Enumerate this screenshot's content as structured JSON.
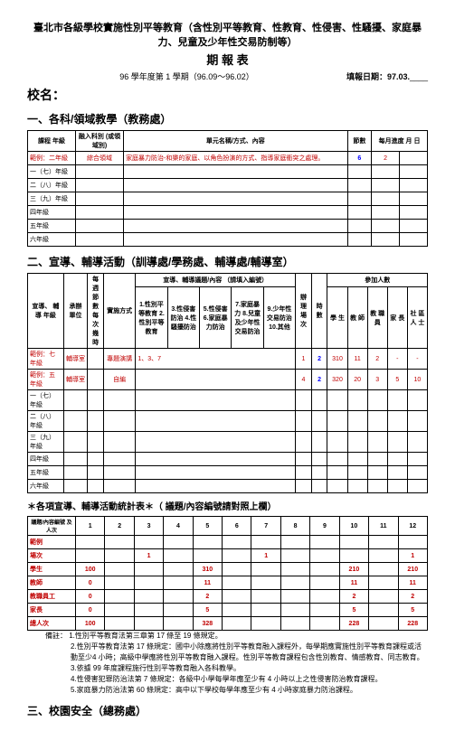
{
  "header": {
    "title": "臺北市各級學校實施性別平等教育（含性別平等教育、性教育、性侵害、性騷擾、家庭暴力、兒童及少年性交易防制等）",
    "report": "期 報 表",
    "semester": "96 學年度第 1 學期（96.09～96.02）",
    "filldate_label": "填報日期：97.03.",
    "school_label": "校名："
  },
  "section1": {
    "heading": "一、各科/領域教學（教務處）",
    "cols": {
      "c1": "課程\n年級",
      "c2": "融入科別\n(或領域別)",
      "c3": "單元名稱/方式、內容",
      "c4": "節數",
      "c5": "每月進度\n月  日"
    },
    "rows": [
      {
        "c1": "範例：二年級",
        "c2": "綜合領域",
        "c3": "家庭暴力防治-和樂的家庭、以角色扮演的方式、指導家庭衝突之處理。",
        "c4": "6",
        "c5": "2",
        "red": true
      },
      {
        "c1": "一（七）年級"
      },
      {
        "c1": "二（八）年級"
      },
      {
        "c1": "三（九）年級"
      },
      {
        "c1": "四年級"
      },
      {
        "c1": "五年級"
      },
      {
        "c1": "六年級"
      }
    ]
  },
  "section2": {
    "heading": "二、宣導、輔導活動（訓導處/學務處、輔導處/輔導室）",
    "h": {
      "c1": "宣導、\n輔導\n年級",
      "c2": "承辦\n單位",
      "sp": "每週\n節數\n每次\n幾時",
      "c3": "實施方式",
      "grp": "宣導、輔導議題/內容\n（請填入編號）",
      "g1": "1.性別平等教育\n2.性別平等教育",
      "g2": "3.性侵害防治\n4.性騷擾防治",
      "g3": "5.性侵害\n6.家庭暴力防治",
      "g4": "7.家庭暴力\n8.兒童及少年性交易防治",
      "g5": "9.少年性交易防治\n10.其他",
      "c4": "辦\n理\n場\n次",
      "c5": "時\n數",
      "p": "參加人數",
      "p1": "學\n生",
      "p2": "教\n師",
      "p3": "教\n職\n員",
      "p4": "家\n長",
      "p5": "社\n區\n人\n士"
    },
    "rows": [
      {
        "c1": "範例：七年級",
        "c2": "輔導室",
        "c3": "專題演講",
        "g": "1、3、7",
        "n1": "1",
        "n2": "2",
        "p1": "310",
        "p2": "11",
        "p3": "2",
        "p4": "-",
        "p5": "-",
        "red": true
      },
      {
        "c1": "範例：五年級",
        "c2": "輔導室",
        "c3": "自編",
        "g": "",
        "n1": "4",
        "n2": "2",
        "p1": "320",
        "p2": "20",
        "p3": "3",
        "p4": "5",
        "p5": "10",
        "red": true
      },
      {
        "c1": "一（七）年級"
      },
      {
        "c1": "二（八）年級"
      },
      {
        "c1": "三（九）年級"
      },
      {
        "c1": "四年級"
      },
      {
        "c1": "五年級"
      },
      {
        "c1": "六年級"
      }
    ]
  },
  "stats": {
    "heading": "＊各項宣導、輔導活動統計表＊（ 議題/內容編號請對照上欄）",
    "head": "議題/內容編號\n及人次",
    "cols": [
      "1",
      "2",
      "3",
      "4",
      "5",
      "6",
      "7",
      "8",
      "9",
      "10",
      "11",
      "12"
    ],
    "rows": [
      {
        "label": "範例",
        "red": true
      },
      {
        "label": "場次",
        "v": [
          "",
          "",
          "1",
          "",
          "",
          "",
          "1",
          "",
          "",
          "",
          "",
          "1"
        ],
        "red": true
      },
      {
        "label": "學生",
        "v": [
          "100",
          "",
          "",
          "",
          "310",
          "",
          "",
          "",
          "",
          "210",
          "",
          "210"
        ],
        "red": true
      },
      {
        "label": "教師",
        "v": [
          "0",
          "",
          "",
          "",
          "11",
          "",
          "",
          "",
          "",
          "11",
          "",
          "11"
        ],
        "red": true
      },
      {
        "label": "教職員工",
        "v": [
          "0",
          "",
          "",
          "",
          "2",
          "",
          "",
          "",
          "",
          "2",
          "",
          "2"
        ],
        "red": true
      },
      {
        "label": "家長",
        "v": [
          "0",
          "",
          "",
          "",
          "5",
          "",
          "",
          "",
          "",
          "5",
          "",
          "5"
        ],
        "red": true
      },
      {
        "label": "總人次",
        "v": [
          "100",
          "",
          "",
          "",
          "328",
          "",
          "",
          "",
          "",
          "228",
          "",
          "228"
        ],
        "red": true
      }
    ]
  },
  "notes": {
    "head": "備註：",
    "items": [
      "1.性別平等教育法第三章第 17 條至 19 條規定。",
      "2.性別平等教育法第 17 條規定：國中小除應將性別平等教育融入課程外，每學期應實施性別平等教育課程或活動至少4 小時；高級中學應將性別平等教育融入課程。性別平等教育課程包含性別教育、情感教育、同志教育。",
      "3.依據 99 年度課程施行性別平等教育融入各科教學。",
      "4.性侵害犯罪防治法第 7 條規定：各級中小學每學年應至少有 4 小時以上之性侵害防治教育課程。",
      "5.家庭暴力防治法第 60 條規定：高中以下學校每學年應至少有 4 小時家庭暴力防治課程。"
    ]
  },
  "section3": {
    "heading": "三、校園安全（總務處）"
  }
}
